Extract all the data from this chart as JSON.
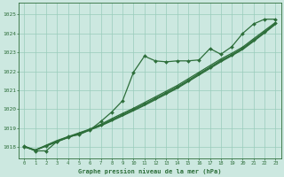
{
  "bg_color": "#cce8e0",
  "grid_color": "#99ccbb",
  "line_color": "#2d6e3a",
  "title": "Graphe pression niveau de la mer (hPa)",
  "xlim": [
    -0.5,
    23.5
  ],
  "ylim": [
    1017.4,
    1025.6
  ],
  "yticks": [
    1018,
    1019,
    1020,
    1021,
    1022,
    1023,
    1024,
    1025
  ],
  "xticks": [
    0,
    1,
    2,
    3,
    4,
    5,
    6,
    7,
    8,
    9,
    10,
    11,
    12,
    13,
    14,
    15,
    16,
    17,
    18,
    19,
    20,
    21,
    22,
    23
  ],
  "series": [
    {
      "values": [
        1018.05,
        1017.8,
        1017.8,
        1018.3,
        1018.55,
        1018.65,
        1018.9,
        1019.35,
        1019.85,
        1020.45,
        1021.95,
        1022.8,
        1022.55,
        1022.5,
        1022.55,
        1022.55,
        1022.6,
        1023.2,
        1022.9,
        1023.3,
        1024.0,
        1024.5,
        1024.75,
        1024.75
      ],
      "marker": "D",
      "markersize": 2.0,
      "linewidth": 0.9,
      "zorder": 5
    },
    {
      "values": [
        1018.05,
        1017.85,
        1018.1,
        1018.35,
        1018.55,
        1018.75,
        1018.95,
        1019.2,
        1019.5,
        1019.78,
        1020.05,
        1020.35,
        1020.65,
        1020.95,
        1021.25,
        1021.6,
        1021.95,
        1022.3,
        1022.65,
        1022.95,
        1023.28,
        1023.72,
        1024.15,
        1024.58
      ],
      "marker": null,
      "markersize": 0,
      "linewidth": 0.9,
      "zorder": 3
    },
    {
      "values": [
        1018.0,
        1017.85,
        1018.05,
        1018.28,
        1018.5,
        1018.7,
        1018.9,
        1019.12,
        1019.38,
        1019.65,
        1019.92,
        1020.2,
        1020.5,
        1020.8,
        1021.1,
        1021.45,
        1021.8,
        1022.15,
        1022.5,
        1022.82,
        1023.15,
        1023.58,
        1024.02,
        1024.48
      ],
      "marker": null,
      "markersize": 0,
      "linewidth": 0.9,
      "zorder": 3
    },
    {
      "values": [
        1018.02,
        1017.82,
        1018.08,
        1018.3,
        1018.52,
        1018.72,
        1018.93,
        1019.16,
        1019.44,
        1019.72,
        1020.0,
        1020.28,
        1020.58,
        1020.88,
        1021.18,
        1021.52,
        1021.88,
        1022.22,
        1022.58,
        1022.88,
        1023.22,
        1023.65,
        1024.08,
        1024.53
      ],
      "marker": "D",
      "markersize": 2.0,
      "linewidth": 0.9,
      "zorder": 4
    },
    {
      "values": [
        1018.03,
        1017.83,
        1018.06,
        1018.29,
        1018.51,
        1018.71,
        1018.92,
        1019.14,
        1019.41,
        1019.69,
        1019.96,
        1020.24,
        1020.54,
        1020.84,
        1021.14,
        1021.49,
        1021.84,
        1022.19,
        1022.54,
        1022.85,
        1023.19,
        1023.62,
        1024.05,
        1024.5
      ],
      "marker": null,
      "markersize": 0,
      "linewidth": 0.7,
      "zorder": 2
    }
  ]
}
